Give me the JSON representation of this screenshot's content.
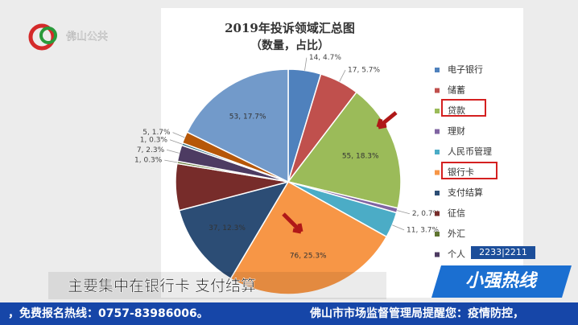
{
  "chart_data": {
    "type": "pie",
    "title": "2019年投诉领域汇总图",
    "subtitle": "（数量，占比）",
    "categories": [
      "电子银行",
      "储蓄",
      "贷款",
      "理财",
      "人民币管理",
      "银行卡",
      "支付结算",
      "征信",
      "外汇",
      "个人",
      null,
      null,
      null
    ],
    "values": [
      14,
      17,
      55,
      2,
      11,
      76,
      37,
      20,
      1,
      7,
      1,
      5,
      53
    ],
    "value_labels": [
      "14, 4.7%",
      "17, 5.7%",
      "55, 18.3%",
      "2, 0.7%",
      "11, 3.7%",
      "76, 25.3%",
      "37, 12.3%",
      null,
      "1, 0.3%",
      "7, 2.3%",
      "1, 0.3%",
      "5, 1.7%",
      "53, 17.7%"
    ],
    "colors": [
      "#4f81bd",
      "#c0504d",
      "#9bbb59",
      "#8064a2",
      "#4bacc6",
      "#f79646",
      "#2c4d75",
      "#772c2a",
      "#5f7530",
      "#4d3b62",
      "#276a7c",
      "#b65708",
      "#729aca"
    ]
  },
  "logo": "佛山公共",
  "caption": "主要集中在银行卡 支付结算",
  "show": {
    "name": "小强热线",
    "clock": "2233|2211"
  },
  "ticker": [
    "，免费报名热线：0757-83986006。",
    "佛山市市场监督管理局提醒您：疫情防控，"
  ]
}
